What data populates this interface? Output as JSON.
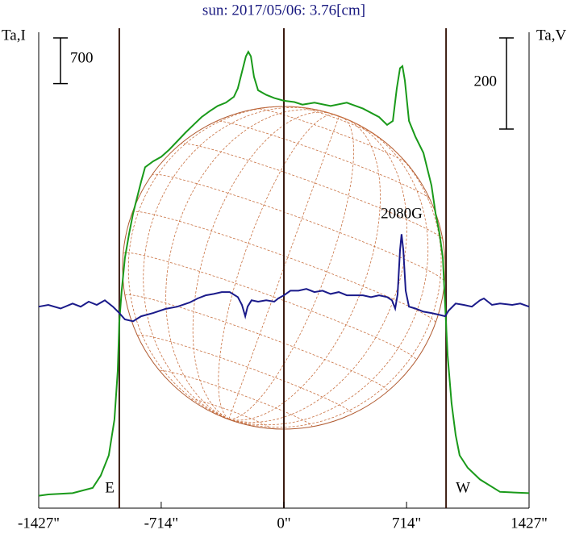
{
  "chart_data": {
    "type": "line",
    "title": "sun: 2017/05/06: 3.76[cm]",
    "xlim": [
      -1427,
      1427
    ],
    "xticks": [
      {
        "value": -1427,
        "label": "-1427\""
      },
      {
        "value": -714,
        "label": "-714\""
      },
      {
        "value": 0,
        "label": "0\""
      },
      {
        "value": 714,
        "label": "714\""
      },
      {
        "value": 1427,
        "label": "1427\""
      }
    ],
    "ylim": [
      -200,
      7100
    ],
    "y2lim": [
      -442,
      602
    ],
    "limb_lines": [
      -958,
      944
    ],
    "disk_radius": 939,
    "scale_bars": [
      {
        "value": 700,
        "axis": "y"
      },
      {
        "value": 200,
        "axis": "y2"
      }
    ],
    "limb_labels": [
      "E",
      "W"
    ],
    "annotation": "2080G",
    "series": [
      {
        "name": "Ta,I",
        "color": "#1a9a1a",
        "x": [
          -1427,
          -1371,
          -1230,
          -1113,
          -1066,
          -1019,
          -986,
          -967,
          -958,
          -944,
          -925,
          -901,
          -878,
          -854,
          -831,
          -808,
          -761,
          -714,
          -667,
          -620,
          -573,
          -526,
          -479,
          -432,
          -385,
          -338,
          -291,
          -268,
          -244,
          -221,
          -207,
          -192,
          -174,
          -150,
          -103,
          -56,
          0,
          61,
          108,
          178,
          272,
          366,
          460,
          554,
          601,
          634,
          657,
          676,
          690,
          704,
          728,
          765,
          812,
          859,
          883,
          906,
          925,
          939,
          953,
          976,
          1000,
          1023,
          1070,
          1141,
          1258,
          1427
        ],
        "values": [
          -10,
          10,
          30,
          110,
          300,
          610,
          1160,
          1910,
          2650,
          3140,
          3640,
          4010,
          4320,
          4570,
          4810,
          5030,
          5120,
          5190,
          5300,
          5430,
          5560,
          5680,
          5800,
          5890,
          5970,
          6020,
          6110,
          6240,
          6490,
          6730,
          6800,
          6730,
          6420,
          6210,
          6140,
          6090,
          6050,
          6030,
          5990,
          6020,
          5970,
          6020,
          5930,
          5800,
          5680,
          5740,
          6240,
          6550,
          6580,
          6360,
          5740,
          5500,
          5250,
          4750,
          4320,
          4010,
          3640,
          2900,
          2150,
          1410,
          920,
          610,
          420,
          240,
          50,
          30
        ]
      },
      {
        "name": "Ta,V",
        "color": "#1a1a8a",
        "axis": "y2",
        "x": [
          -1427,
          -1371,
          -1300,
          -1230,
          -1183,
          -1136,
          -1089,
          -1042,
          -995,
          -958,
          -925,
          -878,
          -831,
          -761,
          -690,
          -620,
          -549,
          -502,
          -455,
          -408,
          -362,
          -315,
          -268,
          -244,
          -225,
          -211,
          -188,
          -150,
          -103,
          -56,
          -33,
          0,
          38,
          85,
          131,
          178,
          225,
          272,
          319,
          366,
          413,
          460,
          507,
          554,
          601,
          629,
          648,
          662,
          676,
          685,
          695,
          709,
          728,
          765,
          812,
          859,
          906,
          939,
          958,
          1000,
          1047,
          1094,
          1141,
          1164,
          1211,
          1258,
          1329,
          1376,
          1427
        ],
        "values": [
          0,
          4,
          -4,
          7,
          0,
          11,
          4,
          14,
          0,
          -14,
          -28,
          -32,
          -21,
          -14,
          -5,
          0,
          9,
          18,
          25,
          28,
          32,
          32,
          21,
          4,
          -21,
          0,
          14,
          11,
          14,
          11,
          18,
          25,
          35,
          35,
          39,
          32,
          35,
          28,
          32,
          25,
          25,
          25,
          21,
          25,
          21,
          14,
          -4,
          27,
          124,
          159,
          124,
          35,
          0,
          -4,
          -11,
          -14,
          -18,
          -21,
          -9,
          7,
          4,
          0,
          14,
          18,
          4,
          7,
          4,
          7,
          0
        ]
      }
    ]
  }
}
